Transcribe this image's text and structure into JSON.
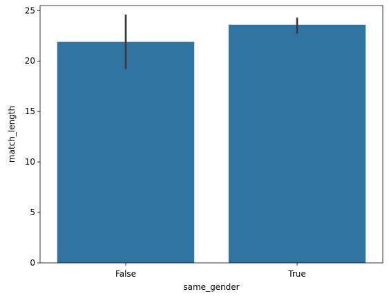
{
  "chart_data": {
    "type": "bar",
    "categories": [
      "False",
      "True"
    ],
    "values": [
      21.9,
      23.6
    ],
    "error_bars": [
      {
        "low": 19.2,
        "high": 24.6
      },
      {
        "low": 22.7,
        "high": 24.3
      }
    ],
    "xlabel": "same_gender",
    "ylabel": "match_length",
    "ylim": [
      0,
      25.5
    ],
    "yticks": [
      0,
      5,
      10,
      15,
      20,
      25
    ],
    "grid": false,
    "bar_color": "#3274a1",
    "error_color": "#3b3b3b"
  }
}
